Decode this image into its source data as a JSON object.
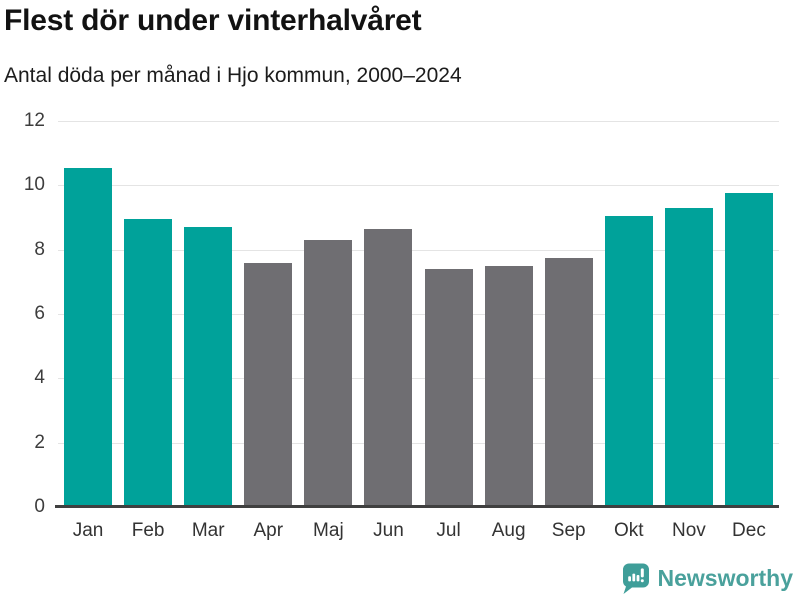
{
  "header": {
    "title": "Flest dör under vinterhalvåret",
    "subtitle": "Antal döda per månad i Hjo kommun, 2000–2024"
  },
  "chart_data": {
    "type": "bar",
    "title": "Flest dör under vinterhalvåret",
    "subtitle": "Antal döda per månad i Hjo kommun, 2000–2024",
    "categories": [
      "Jan",
      "Feb",
      "Mar",
      "Apr",
      "Maj",
      "Jun",
      "Jul",
      "Aug",
      "Sep",
      "Okt",
      "Nov",
      "Dec"
    ],
    "values": [
      10.55,
      8.95,
      8.7,
      7.6,
      8.3,
      8.65,
      7.4,
      7.5,
      7.75,
      9.05,
      9.3,
      9.75
    ],
    "bar_groups": [
      "highlight",
      "highlight",
      "highlight",
      "muted",
      "muted",
      "muted",
      "muted",
      "muted",
      "muted",
      "highlight",
      "highlight",
      "highlight"
    ],
    "xlabel": "",
    "ylabel": "",
    "ylim": [
      0,
      12
    ],
    "yticks": [
      0,
      2,
      4,
      6,
      8,
      10,
      12
    ],
    "grid": true,
    "legend_position": "none",
    "colors": {
      "highlight": "#00a29a",
      "muted": "#6f6e72",
      "gridline": "#e4e4e4",
      "axis": "#404040"
    }
  },
  "branding": {
    "logo_text": "Newsworthy",
    "logo_color": "#4aa19c",
    "badge_color": "#3f9e99",
    "logo_icon": "bar-chart-badge-icon"
  }
}
